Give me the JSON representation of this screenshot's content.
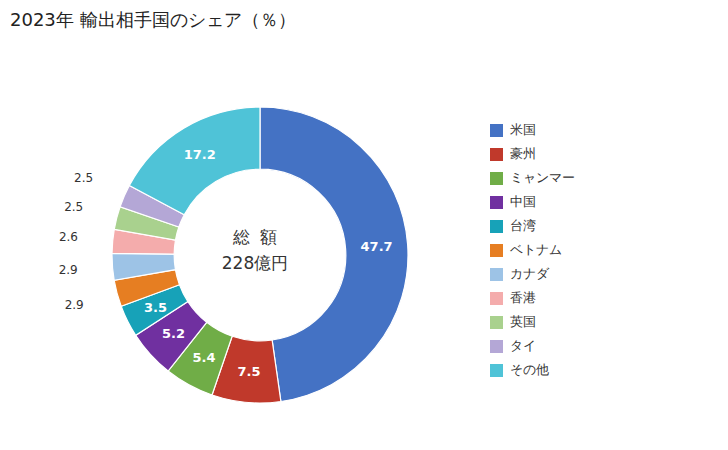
{
  "chart_data": {
    "type": "donut",
    "title": "2023年 輸出相手国のシェア（％）",
    "annotations": [
      "総  額",
      "228億円"
    ],
    "categories": [
      "米国",
      "豪州",
      "ミャンマー",
      "中国",
      "台湾",
      "ベトナム",
      "カナダ",
      "香港",
      "英国",
      "タイ",
      "その他"
    ],
    "values": [
      47.7,
      7.5,
      5.4,
      5.2,
      3.5,
      2.9,
      2.9,
      2.6,
      2.5,
      2.5,
      17.2
    ],
    "colors": [
      "#4472C4",
      "#C0392B",
      "#70AD47",
      "#7030A0",
      "#17A2B8",
      "#E67E22",
      "#9DC3E6",
      "#F4ACAC",
      "#A9D18E",
      "#B4A7D6",
      "#4FC3D7"
    ],
    "legend": "right",
    "data_labels": true
  }
}
